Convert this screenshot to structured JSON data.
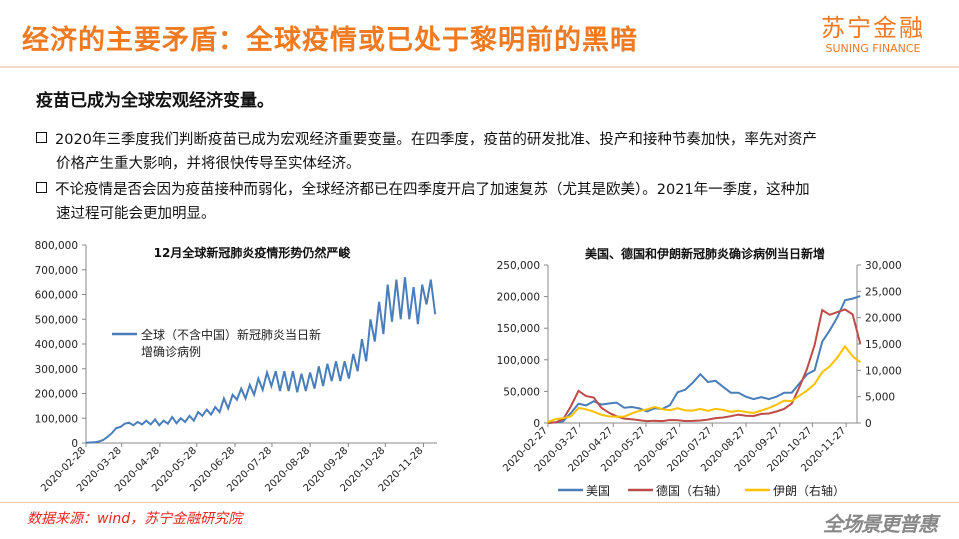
{
  "header": {
    "title": "经济的主要矛盾：全球疫情或已处于黎明前的黑暗",
    "logo_cn": "苏宁金融",
    "logo_en": "SUNING FINANCE"
  },
  "subtitle": "疫苗已成为全球宏观经济变量。",
  "bullets": [
    {
      "line1": "2020年三季度我们判断疫苗已成为宏观经济重要变量。在四季度，疫苗的研发批准、投产和接种节奏加快，率先对资产",
      "line2": "价格产生重大影响，并将很快传导至实体经济。"
    },
    {
      "line1": "不论疫情是否会因为疫苗接种而弱化，全球经济都已在四季度开启了加速复苏（尤其是欧美）。2021年一季度，这种加",
      "line2": "速过程可能会更加明显。"
    }
  ],
  "footer": {
    "source": "数据来源：wind，苏宁金融研究院",
    "slogan": "全场景更普惠"
  },
  "chart_data": [
    {
      "type": "line",
      "title": "12月全球新冠肺炎疫情形势仍然严峻",
      "ylim": [
        0,
        800000
      ],
      "yticks": [
        "0",
        "100,000",
        "200,000",
        "300,000",
        "400,000",
        "500,000",
        "600,000",
        "700,000",
        "800,000"
      ],
      "xticks": [
        {
          "label": "2020-02-28",
          "day": 0
        },
        {
          "label": "2020-03-28",
          "day": 29
        },
        {
          "label": "2020-04-28",
          "day": 60
        },
        {
          "label": "2020-05-28",
          "day": 90
        },
        {
          "label": "2020-06-28",
          "day": 121
        },
        {
          "label": "2020-07-28",
          "day": 151
        },
        {
          "label": "2020-08-28",
          "day": 182
        },
        {
          "label": "2020-09-28",
          "day": 213
        },
        {
          "label": "2020-10-28",
          "day": 243
        },
        {
          "label": "2020-11-28",
          "day": 274
        }
      ],
      "xmax_day": 285,
      "step_days": 3.5,
      "color": "#4a7ebb",
      "series": [
        {
          "name": "全球（不含中国）新冠肺炎当日新增确诊病例",
          "legend_line2": "增确诊病例",
          "legend_line1": "全球（不含中国）新冠肺炎当日新",
          "values": [
            1000,
            2000,
            3000,
            6000,
            12000,
            25000,
            40000,
            60000,
            65000,
            78000,
            82000,
            72000,
            85000,
            75000,
            90000,
            75000,
            95000,
            72000,
            90000,
            78000,
            105000,
            80000,
            100000,
            85000,
            110000,
            90000,
            125000,
            110000,
            135000,
            115000,
            145000,
            125000,
            180000,
            140000,
            195000,
            175000,
            220000,
            180000,
            235000,
            195000,
            260000,
            215000,
            285000,
            230000,
            290000,
            210000,
            290000,
            210000,
            290000,
            205000,
            280000,
            210000,
            285000,
            220000,
            310000,
            230000,
            320000,
            250000,
            330000,
            250000,
            330000,
            260000,
            360000,
            290000,
            420000,
            330000,
            500000,
            410000,
            570000,
            440000,
            640000,
            490000,
            660000,
            500000,
            670000,
            500000,
            630000,
            480000,
            640000,
            560000,
            660000,
            520000
          ]
        }
      ]
    },
    {
      "type": "line",
      "title": "美国、德国和伊朗新冠肺炎确诊病例当日新增",
      "ylim": [
        0,
        250000
      ],
      "y2lim": [
        0,
        30000
      ],
      "yticks": [
        "0",
        "50,000",
        "100,000",
        "150,000",
        "200,000",
        "250,000"
      ],
      "y2ticks": [
        "0",
        "5,000",
        "10,000",
        "15,000",
        "20,000",
        "25,000",
        "30,000"
      ],
      "xticks": [
        {
          "label": "2020-02-27",
          "day": 0
        },
        {
          "label": "2020-03-27",
          "day": 29
        },
        {
          "label": "2020-04-27",
          "day": 60
        },
        {
          "label": "2020-05-27",
          "day": 90
        },
        {
          "label": "2020-06-27",
          "day": 121
        },
        {
          "label": "2020-07-27",
          "day": 151
        },
        {
          "label": "2020-08-27",
          "day": 182
        },
        {
          "label": "2020-09-27",
          "day": 213
        },
        {
          "label": "2020-10-27",
          "day": 243
        },
        {
          "label": "2020-11-27",
          "day": 274
        }
      ],
      "xmax_day": 284,
      "step_days": 7,
      "series": [
        {
          "name": "美国",
          "axis": "left",
          "color": "#4a7ebb",
          "values": [
            500,
            1000,
            3000,
            15000,
            30000,
            30000,
            32000,
            30000,
            32000,
            30000,
            26000,
            25000,
            22000,
            20000,
            22000,
            22000,
            30000,
            45000,
            55000,
            65000,
            72000,
            70000,
            65000,
            55000,
            52000,
            45000,
            42000,
            40000,
            38000,
            40000,
            42000,
            45000,
            52000,
            60000,
            75000,
            90000,
            120000,
            150000,
            175000,
            180000,
            210000,
            200000
          ]
        },
        {
          "name": "德国（右轴）",
          "axis": "right",
          "color": "#be4b48",
          "values": [
            0,
            100,
            800,
            3000,
            6000,
            5500,
            4500,
            3000,
            2000,
            1200,
            900,
            700,
            500,
            400,
            400,
            350,
            600,
            500,
            400,
            400,
            450,
            700,
            900,
            1000,
            1400,
            1500,
            1400,
            1400,
            1600,
            1900,
            2200,
            2500,
            4000,
            6500,
            10000,
            16000,
            20000,
            21000,
            22000,
            20000,
            22000,
            15000
          ]
        },
        {
          "name": "伊朗（右轴）",
          "axis": "right",
          "color": "#ffc000",
          "values": [
            200,
            700,
            1000,
            1200,
            2800,
            2800,
            2000,
            1600,
            1300,
            1100,
            1300,
            1800,
            2200,
            2800,
            2900,
            2600,
            2600,
            2600,
            2500,
            2400,
            2500,
            2500,
            2600,
            2400,
            2300,
            2200,
            2100,
            2000,
            2200,
            3000,
            3500,
            4000,
            4500,
            5000,
            6000,
            8000,
            9000,
            11000,
            13000,
            13500,
            13500,
            11500
          ]
        }
      ]
    }
  ]
}
